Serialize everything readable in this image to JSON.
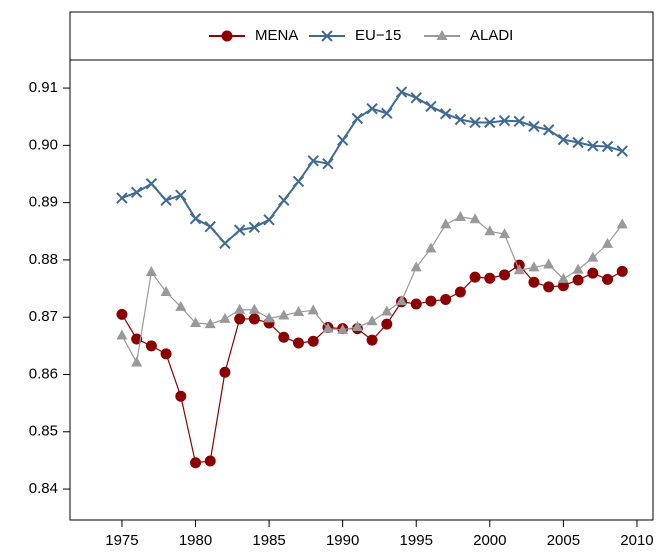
{
  "chart_data": {
    "type": "line",
    "x": [
      1975,
      1976,
      1977,
      1978,
      1979,
      1980,
      1981,
      1982,
      1983,
      1984,
      1985,
      1986,
      1987,
      1988,
      1989,
      1990,
      1991,
      1992,
      1993,
      1994,
      1995,
      1996,
      1997,
      1998,
      1999,
      2000,
      2001,
      2002,
      2003,
      2004,
      2005,
      2006,
      2007,
      2008,
      2009
    ],
    "series": [
      {
        "name": "MENA",
        "color": "#8b0000",
        "marker": "circle",
        "values": [
          0.8705,
          0.8662,
          0.865,
          0.8636,
          0.8562,
          0.8446,
          0.8449,
          0.8604,
          0.8697,
          0.8697,
          0.869,
          0.8665,
          0.8655,
          0.8658,
          0.8682,
          0.868,
          0.868,
          0.866,
          0.8688,
          0.8727,
          0.8723,
          0.8728,
          0.8731,
          0.8744,
          0.877,
          0.8768,
          0.8774,
          0.8791,
          0.8761,
          0.8753,
          0.8755,
          0.8765,
          0.8777,
          0.8766,
          0.878
        ]
      },
      {
        "name": "EU−15",
        "color": "#3f6a93",
        "marker": "x",
        "values": [
          0.8908,
          0.8918,
          0.8933,
          0.8904,
          0.8913,
          0.8872,
          0.8858,
          0.8829,
          0.8852,
          0.8857,
          0.887,
          0.8904,
          0.8937,
          0.8973,
          0.8968,
          0.9009,
          0.9047,
          0.9064,
          0.9056,
          0.9093,
          0.9083,
          0.9068,
          0.9055,
          0.9045,
          0.904,
          0.904,
          0.9043,
          0.9042,
          0.9033,
          0.9027,
          0.901,
          0.9005,
          0.8999,
          0.8998,
          0.899
        ]
      },
      {
        "name": "ALADI",
        "color": "#999999",
        "marker": "triangle",
        "values": [
          0.8668,
          0.8621,
          0.8779,
          0.8744,
          0.8718,
          0.869,
          0.8688,
          0.8697,
          0.8713,
          0.8713,
          0.8698,
          0.8703,
          0.8709,
          0.8712,
          0.868,
          0.8678,
          0.8683,
          0.8693,
          0.871,
          0.8728,
          0.8787,
          0.882,
          0.8862,
          0.8875,
          0.8871,
          0.885,
          0.8845,
          0.8782,
          0.8787,
          0.8792,
          0.8767,
          0.8783,
          0.8804,
          0.8828,
          0.8862
        ]
      }
    ],
    "xlim": [
      1971.47,
      2011.09
    ],
    "xticks": [
      1975,
      1980,
      1985,
      1990,
      1995,
      2000,
      2005,
      2010
    ],
    "ylim": [
      0.8346,
      0.9149
    ],
    "yticks": [
      0.84,
      0.85,
      0.86,
      0.87,
      0.88,
      0.89,
      {
        "value": 0.9,
        "label": "0.90"
      },
      0.91
    ],
    "legend": "top"
  }
}
